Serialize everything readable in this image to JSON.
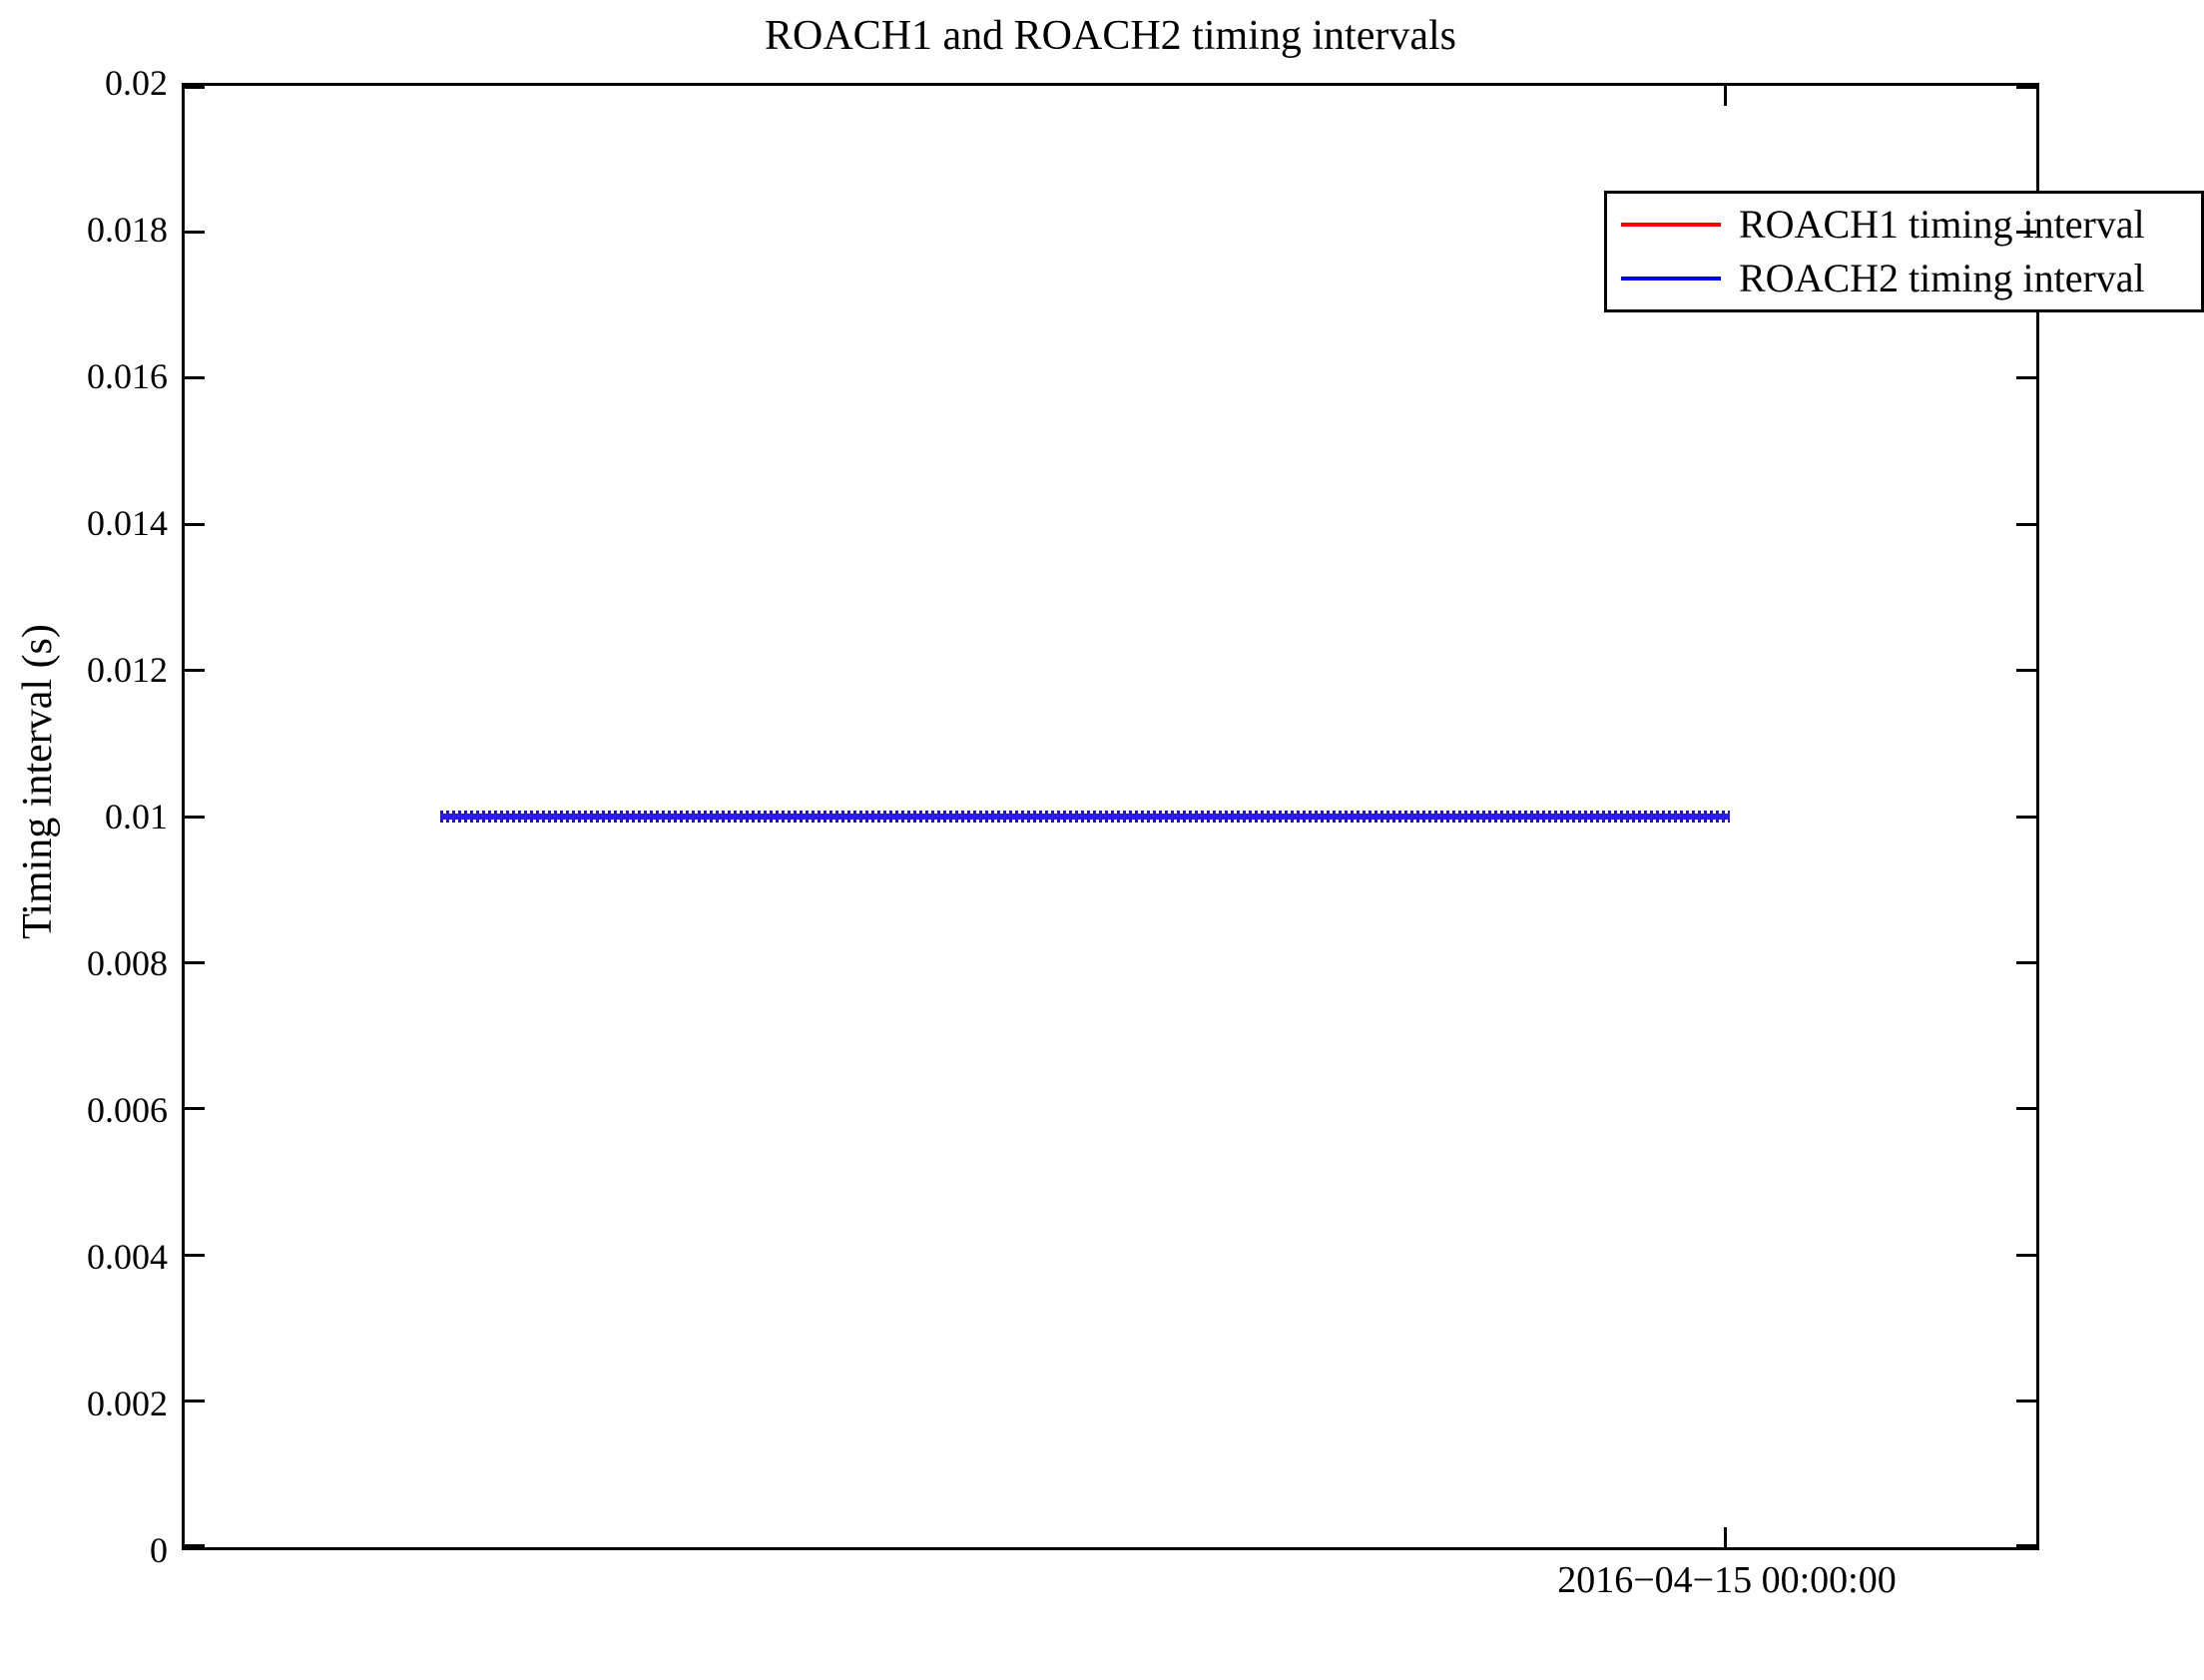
{
  "figure": {
    "background_color": "#ffffff",
    "axes_color": "#000000"
  },
  "chart_data": {
    "type": "line",
    "title": "ROACH1 and ROACH2 timing intervals",
    "xlabel": "",
    "ylabel": "Timing interval (s)",
    "ylim": [
      0,
      0.02
    ],
    "ytick_labels": [
      "0.02",
      "0.018",
      "0.016",
      "0.014",
      "0.012",
      "0.01",
      "0.008",
      "0.006",
      "0.004",
      "0.002",
      "0"
    ],
    "ytick_values": [
      0.02,
      0.018,
      0.016,
      0.014,
      0.012,
      0.01,
      0.008,
      0.006,
      0.004,
      0.002,
      0
    ],
    "xtick_labels": [
      "2016−04−15 00:00:00"
    ],
    "xtick_axis_fraction": 0.832,
    "grid": false,
    "legend_position": "upper right",
    "series": [
      {
        "name": "ROACH1 timing interval",
        "color": "#ff0000",
        "constant_value": 0.01,
        "x_span_axis_fraction": [
          0.139,
          0.834
        ]
      },
      {
        "name": "ROACH2 timing interval",
        "color": "#0000ff",
        "constant_value": 0.01,
        "x_span_axis_fraction": [
          0.139,
          0.834
        ]
      }
    ]
  }
}
